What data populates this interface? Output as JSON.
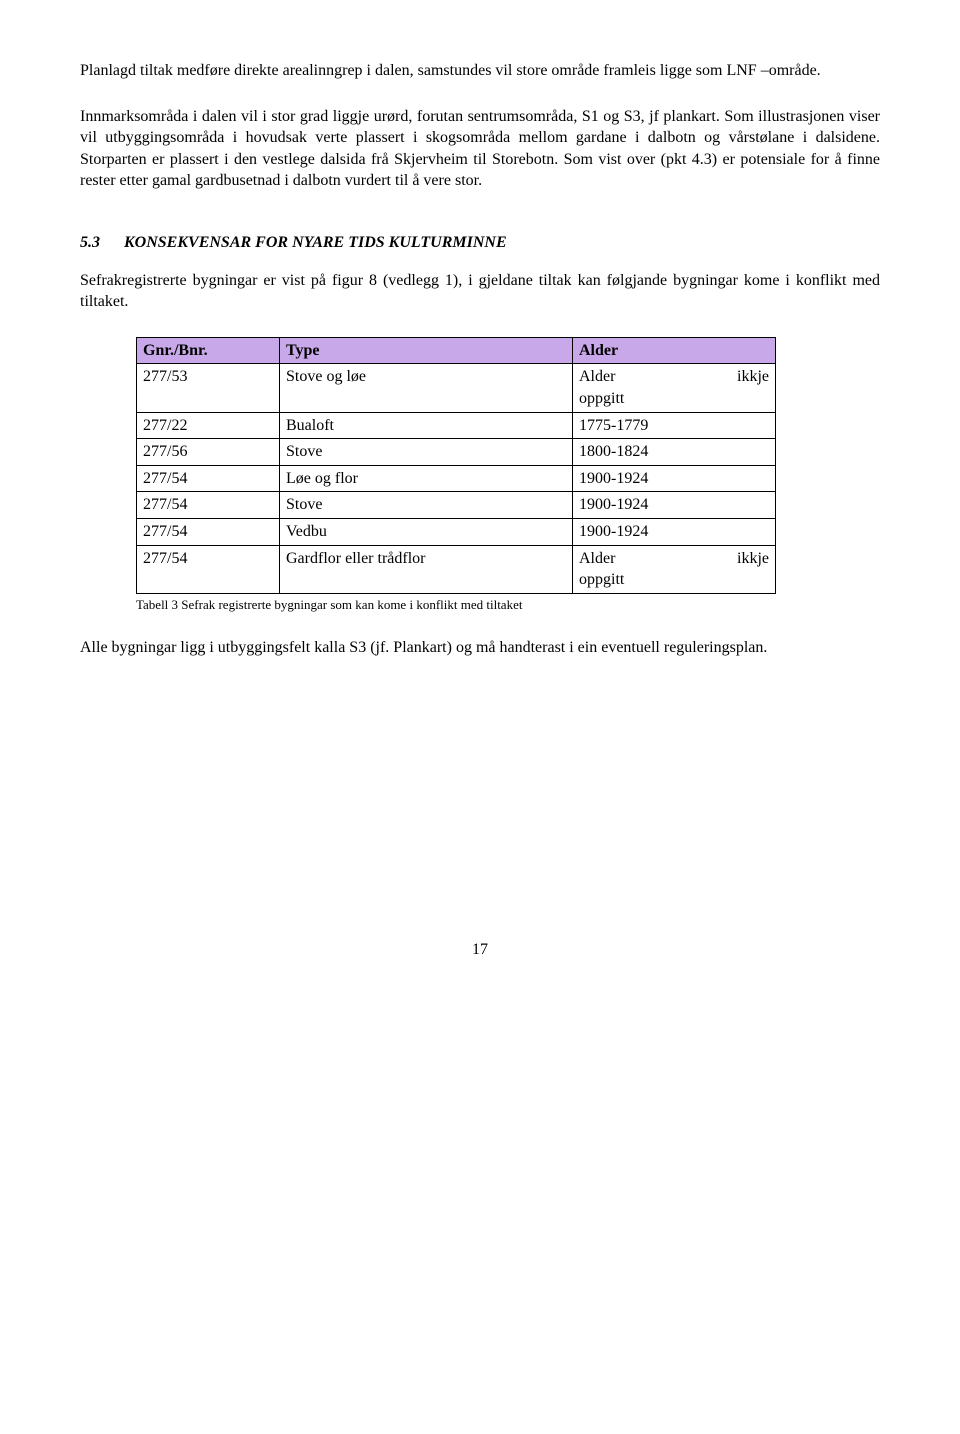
{
  "paragraphs": {
    "p1": "Planlagd tiltak medføre direkte arealinngrep i dalen, samstundes vil store område framleis ligge som LNF –område.",
    "p2": "Innmarksområda i dalen vil i stor grad liggje urørd, forutan sentrumsområda, S1 og S3, jf plankart. Som illustrasjonen viser vil utbyggingsområda i hovudsak verte plassert i skogsområda mellom gardane i dalbotn og vårstølane i dalsidene. Storparten er plassert i den vestlege dalsida frå Skjervheim til Storebotn. Som vist over (pkt 4.3) er potensiale for å finne rester etter gamal gardbusetnad i dalbotn vurdert til å vere stor."
  },
  "section": {
    "number": "5.3",
    "title": "KONSEKVENSAR FOR NYARE TIDS KULTURMINNE"
  },
  "section_intro": "Sefrakregistrerte bygningar er vist på figur 8 (vedlegg 1), i gjeldane tiltak kan følgjande bygningar kome i konflikt med tiltaket.",
  "table": {
    "header_bg": "#c8a8e8",
    "columns": [
      "Gnr./Bnr.",
      "Type",
      "Alder"
    ],
    "rows": [
      [
        "277/53",
        "Stove og løe",
        "Alder ikkje oppgitt"
      ],
      [
        "277/22",
        "Bualoft",
        "1775-1779"
      ],
      [
        "277/56",
        "Stove",
        "1800-1824"
      ],
      [
        "277/54",
        "Løe og flor",
        "1900-1924"
      ],
      [
        "277/54",
        "Stove",
        "1900-1924"
      ],
      [
        "277/54",
        "Vedbu",
        "1900-1924"
      ],
      [
        "277/54",
        "Gardflor eller trådflor",
        "Alder ikkje oppgitt"
      ]
    ],
    "caption": "Tabell 3 Sefrak registrerte bygningar som kan kome i konflikt med tiltaket"
  },
  "closing": "Alle bygningar ligg i utbyggingsfelt kalla S3 (jf. Plankart) og må handterast i ein eventuell reguleringsplan.",
  "page_number": "17"
}
